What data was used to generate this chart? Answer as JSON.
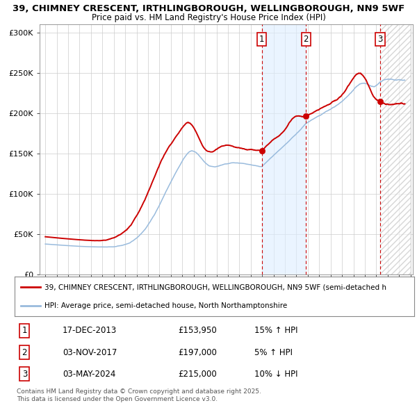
{
  "title_line1": "39, CHIMNEY CRESCENT, IRTHLINGBOROUGH, WELLINGBOROUGH, NN9 5WF",
  "title_line2": "Price paid vs. HM Land Registry's House Price Index (HPI)",
  "legend_line1": "39, CHIMNEY CRESCENT, IRTHLINGBOROUGH, WELLINGBOROUGH, NN9 5WF (semi-detached h",
  "legend_line2": "HPI: Average price, semi-detached house, North Northamptonshire",
  "footer": "Contains HM Land Registry data © Crown copyright and database right 2025.\nThis data is licensed under the Open Government Licence v3.0.",
  "transactions": [
    {
      "label": "1",
      "date": "17-DEC-2013",
      "price": 153950,
      "hpi_rel": "15% ↑ HPI",
      "date_num": 2013.96
    },
    {
      "label": "2",
      "date": "03-NOV-2017",
      "price": 197000,
      "hpi_rel": "5% ↑ HPI",
      "date_num": 2017.84
    },
    {
      "label": "3",
      "date": "03-MAY-2024",
      "price": 215000,
      "hpi_rel": "10% ↓ HPI",
      "date_num": 2024.33
    }
  ],
  "shaded_region": [
    2013.96,
    2017.84
  ],
  "hatch_region": [
    2024.33,
    2027.0
  ],
  "red_line_color": "#cc0000",
  "blue_line_color": "#99bbdd",
  "vline_color": "#cc0000",
  "shade_color": "#ddeeff",
  "ylim": [
    0,
    310000
  ],
  "xlim_start": 1994.5,
  "xlim_end": 2027.2,
  "yticks": [
    0,
    50000,
    100000,
    150000,
    200000,
    250000,
    300000
  ],
  "ytick_labels": [
    "£0",
    "£50K",
    "£100K",
    "£150K",
    "£200K",
    "£250K",
    "£300K"
  ],
  "xticks": [
    1995,
    1996,
    1997,
    1998,
    1999,
    2000,
    2001,
    2002,
    2003,
    2004,
    2005,
    2006,
    2007,
    2008,
    2009,
    2010,
    2011,
    2012,
    2013,
    2014,
    2015,
    2016,
    2017,
    2018,
    2019,
    2020,
    2021,
    2022,
    2023,
    2024,
    2025,
    2026,
    2027
  ]
}
